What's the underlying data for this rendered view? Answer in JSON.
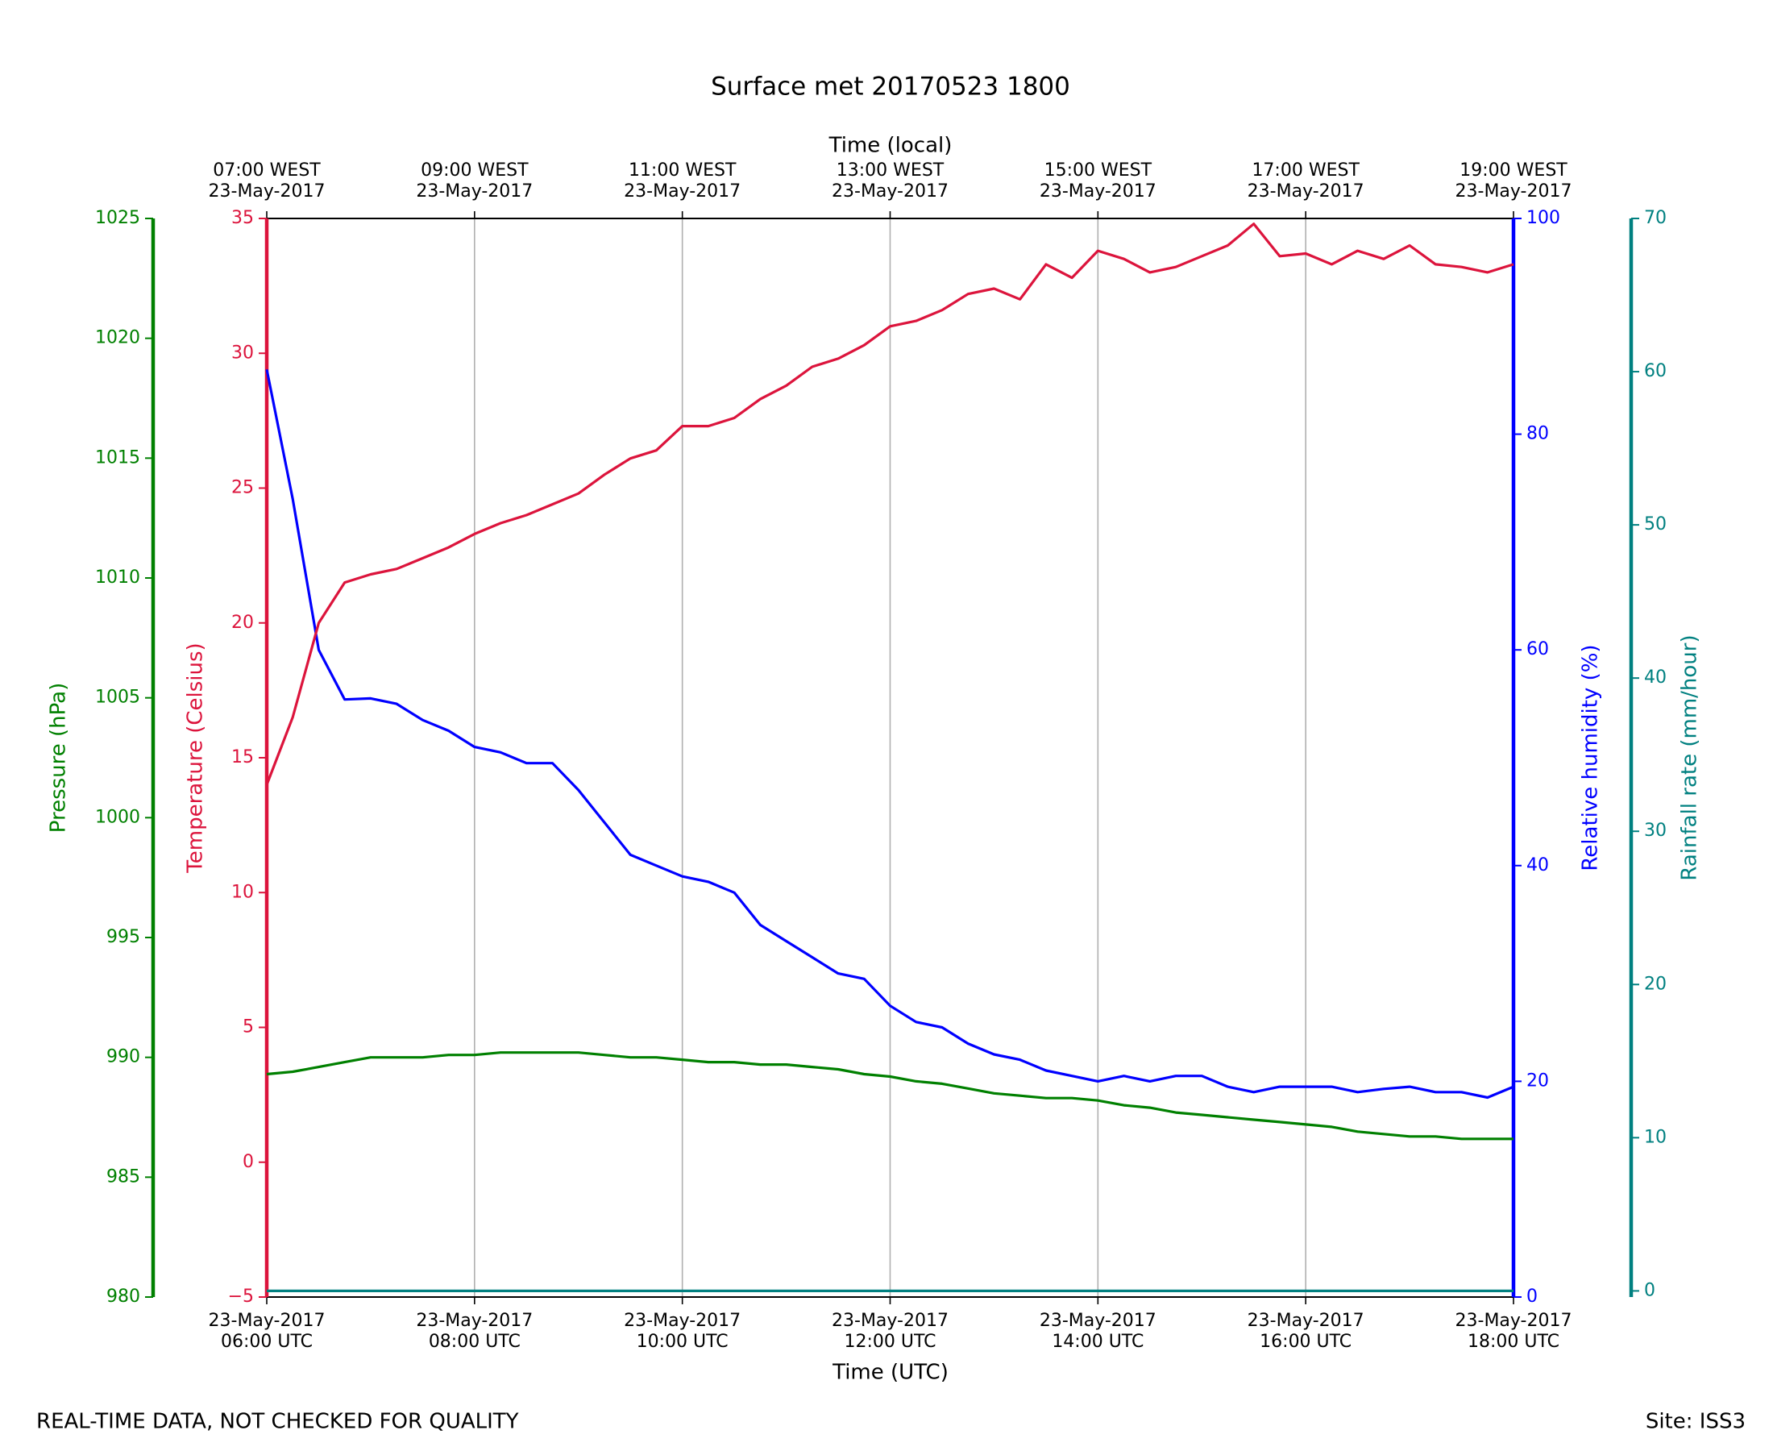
{
  "chart_data": {
    "type": "line",
    "title": "Surface met 20170523 1800",
    "xlabel": "Time (UTC)",
    "x2label": "Time (local)",
    "footer_left": "REAL-TIME DATA, NOT CHECKED FOR QUALITY",
    "footer_right": "Site: ISS3",
    "x": [
      6,
      6.25,
      6.5,
      6.75,
      7,
      7.25,
      7.5,
      7.75,
      8,
      8.25,
      8.5,
      8.75,
      9,
      9.25,
      9.5,
      9.75,
      10,
      10.25,
      10.5,
      10.75,
      11,
      11.25,
      11.5,
      11.75,
      12,
      12.25,
      12.5,
      12.75,
      13,
      13.25,
      13.5,
      13.75,
      14,
      14.25,
      14.5,
      14.75,
      15,
      15.25,
      15.5,
      15.75,
      16,
      16.25,
      16.5,
      16.75,
      17,
      17.25,
      17.5,
      17.75,
      18
    ],
    "xlim": [
      6,
      18
    ],
    "xticks": [
      {
        "value": 6,
        "label": "23-May-2017\n06:00 UTC"
      },
      {
        "value": 8,
        "label": "23-May-2017\n08:00 UTC"
      },
      {
        "value": 10,
        "label": "23-May-2017\n10:00 UTC"
      },
      {
        "value": 12,
        "label": "23-May-2017\n12:00 UTC"
      },
      {
        "value": 14,
        "label": "23-May-2017\n14:00 UTC"
      },
      {
        "value": 16,
        "label": "23-May-2017\n16:00 UTC"
      },
      {
        "value": 18,
        "label": "23-May-2017\n18:00 UTC"
      }
    ],
    "x2ticks": [
      {
        "value": 6,
        "label": "07:00 WEST\n23-May-2017"
      },
      {
        "value": 8,
        "label": "09:00 WEST\n23-May-2017"
      },
      {
        "value": 10,
        "label": "11:00 WEST\n23-May-2017"
      },
      {
        "value": 12,
        "label": "13:00 WEST\n23-May-2017"
      },
      {
        "value": 14,
        "label": "15:00 WEST\n23-May-2017"
      },
      {
        "value": 16,
        "label": "17:00 WEST\n23-May-2017"
      },
      {
        "value": 18,
        "label": "19:00 WEST\n23-May-2017"
      }
    ],
    "grid": true,
    "ylabel": "Temperature (Celsius)",
    "ylim": [
      -5,
      35
    ],
    "yticks": [
      {
        "value": -5,
        "label": "−5"
      },
      0,
      5,
      10,
      15,
      20,
      25,
      30,
      35
    ],
    "y2label": "Relative humidity (%)",
    "y2lim": [
      0,
      100
    ],
    "y2ticks": [
      0,
      20,
      40,
      60,
      80,
      100
    ],
    "y3label": "Pressure (hPa)",
    "y3lim": [
      980,
      1025
    ],
    "y3ticks": [
      980,
      985,
      990,
      995,
      1000,
      1005,
      1010,
      1015,
      1020,
      1025
    ],
    "y4label": "Rainfall rate (mm/hour)",
    "y4lim": [
      -0.4,
      70
    ],
    "y4ticks": [
      0,
      10,
      20,
      30,
      40,
      50,
      60,
      70
    ],
    "series": [
      {
        "name": "Temperature",
        "axis": "y",
        "color": "#dc143c",
        "values": [
          14.0,
          16.5,
          20.0,
          21.5,
          21.8,
          22.0,
          22.4,
          22.8,
          23.3,
          23.7,
          24.0,
          24.4,
          24.8,
          25.5,
          26.1,
          26.4,
          27.3,
          27.3,
          27.6,
          28.3,
          28.8,
          29.5,
          29.8,
          30.3,
          31.0,
          31.2,
          31.6,
          32.2,
          32.4,
          32.0,
          33.3,
          32.8,
          33.8,
          33.5,
          33.0,
          33.2,
          33.6,
          34.0,
          34.8,
          33.6,
          33.7,
          33.3,
          33.8,
          33.5,
          34.0,
          33.3,
          33.2,
          33.0,
          33.3
        ]
      },
      {
        "name": "Relative humidity",
        "axis": "y2",
        "color": "#0000ff",
        "values": [
          86,
          74,
          60,
          55.4,
          55.5,
          55,
          53.5,
          52.5,
          51,
          50.5,
          49.5,
          49.5,
          47,
          44,
          41,
          40,
          39,
          38.5,
          37.5,
          34.5,
          33,
          31.5,
          30,
          29.5,
          27,
          25.5,
          25,
          23.5,
          22.5,
          22,
          21,
          20.5,
          20,
          20.5,
          20,
          20.5,
          20.5,
          19.5,
          19,
          19.5,
          19.5,
          19.5,
          19,
          19.3,
          19.5,
          19,
          19,
          18.5,
          19.5
        ]
      },
      {
        "name": "Pressure",
        "axis": "y3",
        "color": "#008000",
        "values": [
          989.3,
          989.4,
          989.6,
          989.8,
          990.0,
          990.0,
          990.0,
          990.1,
          990.1,
          990.2,
          990.2,
          990.2,
          990.2,
          990.1,
          990.0,
          990.0,
          989.9,
          989.8,
          989.8,
          989.7,
          989.7,
          989.6,
          989.5,
          989.3,
          989.2,
          989.0,
          988.9,
          988.7,
          988.5,
          988.4,
          988.3,
          988.3,
          988.2,
          988.0,
          987.9,
          987.7,
          987.6,
          987.5,
          987.4,
          987.3,
          987.2,
          987.1,
          986.9,
          986.8,
          986.7,
          986.7,
          986.6,
          986.6,
          986.6
        ]
      },
      {
        "name": "Rainfall rate",
        "axis": "y4",
        "color": "#008080",
        "values": [
          0,
          0,
          0,
          0,
          0,
          0,
          0,
          0,
          0,
          0,
          0,
          0,
          0,
          0,
          0,
          0,
          0,
          0,
          0,
          0,
          0,
          0,
          0,
          0,
          0,
          0,
          0,
          0,
          0,
          0,
          0,
          0,
          0,
          0,
          0,
          0,
          0,
          0,
          0,
          0,
          0,
          0,
          0,
          0,
          0,
          0,
          0,
          0,
          0
        ]
      }
    ]
  }
}
